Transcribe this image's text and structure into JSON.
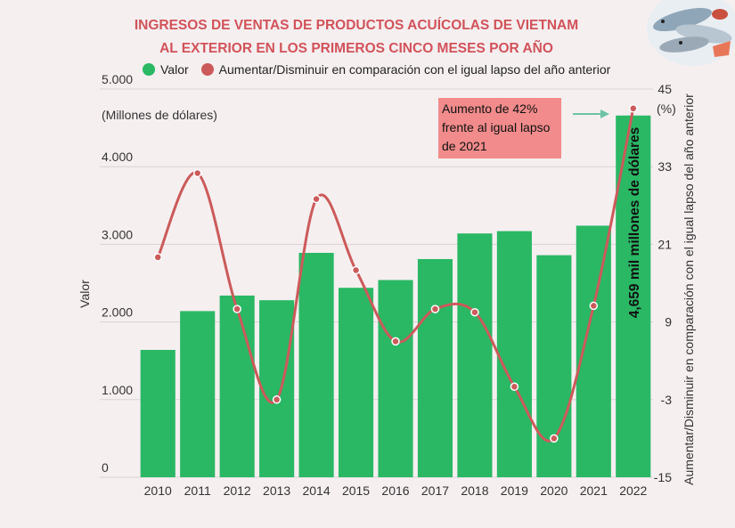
{
  "title_line1": "INGRESOS DE VENTAS DE PRODUCTOS ACUÍCOLAS DE VIETNAM",
  "title_line2": "AL EXTERIOR EN LOS PRIMEROS CINCO MESES POR AÑO",
  "colors": {
    "bar": "#2ab865",
    "line": "#cc5a5a",
    "title": "#d1535a",
    "callout_bg": "#f28b8b",
    "background": "#f6eff0"
  },
  "illustration_icon": "fish-seafood-photo",
  "callout": {
    "line1": "Aumento de 42%",
    "line2": "frente al igual lapso",
    "line3": "de 2021"
  },
  "bar_label": "4,659 mil millones de dólares",
  "chart_data": {
    "type": "bar",
    "title": "INGRESOS DE VENTAS DE PRODUCTOS ACUÍCOLAS DE VIETNAM AL EXTERIOR EN LOS PRIMEROS CINCO MESES POR AÑO",
    "categories": [
      "2010",
      "2011",
      "2012",
      "2013",
      "2014",
      "2015",
      "2016",
      "2017",
      "2018",
      "2019",
      "2020",
      "2021",
      "2022"
    ],
    "series": [
      {
        "name": "Valor",
        "type": "bar",
        "axis": "left",
        "values": [
          1640,
          2140,
          2340,
          2280,
          2890,
          2440,
          2540,
          2810,
          3140,
          3170,
          2860,
          3240,
          4659
        ]
      },
      {
        "name": "Aumentar/Disminuir en comparación con el igual lapso del año anterior",
        "type": "line",
        "axis": "right",
        "values": [
          19,
          32,
          11,
          -3,
          28,
          17,
          6,
          11,
          10.5,
          -1,
          -9,
          11.5,
          42
        ]
      }
    ],
    "left_axis": {
      "label": "Valor",
      "unit": "(Millones de dólares)",
      "ylim": [
        0,
        5000
      ],
      "ticks": [
        0,
        1000,
        2000,
        3000,
        4000,
        5000
      ],
      "tick_labels": [
        "0",
        "1.000",
        "2.000",
        "3.000",
        "4.000",
        "5.000"
      ]
    },
    "right_axis": {
      "label": "Aumentar/Disminuir en comparación con el igual lapso del año anterior",
      "unit": "(%)",
      "ylim": [
        -15,
        45
      ],
      "ticks": [
        -15,
        -3,
        9,
        21,
        33,
        45
      ],
      "tick_labels": [
        "-15",
        "-3",
        "9",
        "21",
        "33",
        "45"
      ]
    },
    "grid": true,
    "legend": "top"
  }
}
